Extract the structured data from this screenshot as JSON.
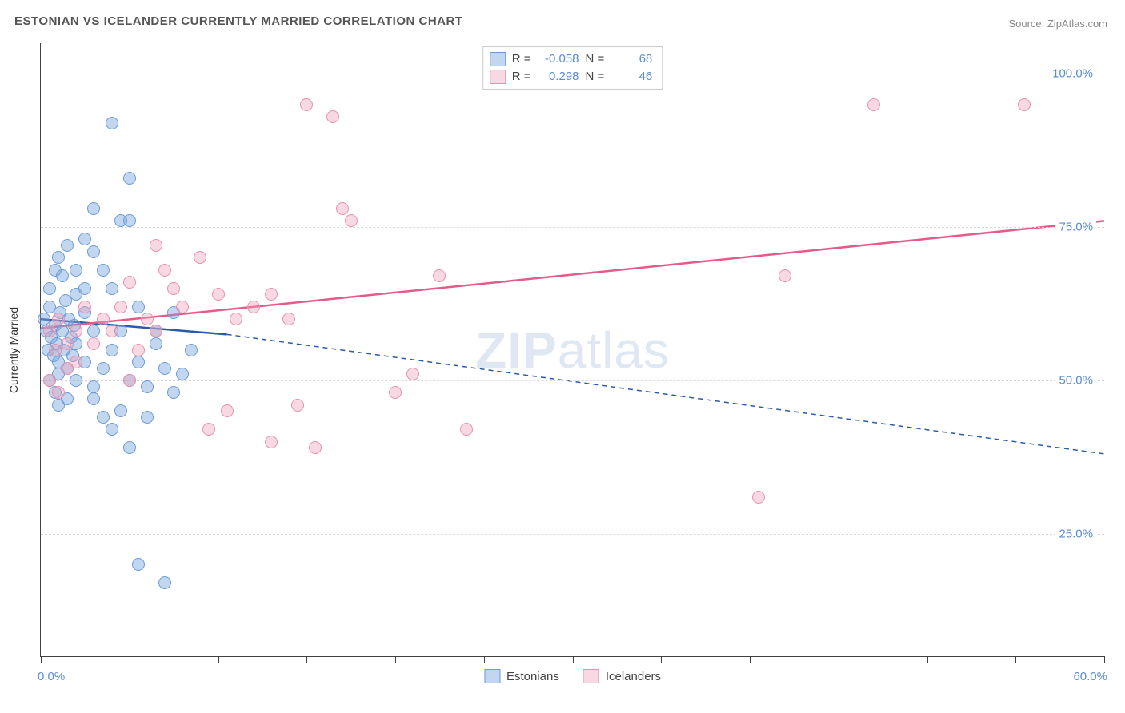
{
  "title": "ESTONIAN VS ICELANDER CURRENTLY MARRIED CORRELATION CHART",
  "source": "Source: ZipAtlas.com",
  "watermark_bold": "ZIP",
  "watermark_rest": "atlas",
  "yaxis_title": "Currently Married",
  "chart": {
    "type": "scatter",
    "xlim": [
      0,
      60
    ],
    "ylim": [
      5,
      105
    ],
    "xtick_positions": [
      0,
      5,
      10,
      15,
      20,
      25,
      30,
      35,
      40,
      45,
      50,
      55,
      60
    ],
    "xlabel_start": "0.0%",
    "xlabel_end": "60.0%",
    "ytick_positions": [
      25,
      50,
      75,
      100
    ],
    "ytick_labels": [
      "25.0%",
      "50.0%",
      "75.0%",
      "100.0%"
    ],
    "grid_color": "#d6d6d6",
    "background_color": "#ffffff",
    "point_radius": 8,
    "series": [
      {
        "name": "Estonians",
        "fill": "rgba(120,165,220,0.45)",
        "stroke": "#6a9bd8",
        "line_color": "#2a5aa8",
        "r_label": "R =",
        "r_value": "-0.058",
        "n_label": "N =",
        "n_value": "68",
        "trend": {
          "x1": 0,
          "y1": 60,
          "x2": 10.5,
          "y2": 57.5,
          "dash_x2": 60,
          "dash_y2": 38
        },
        "points": [
          [
            0.2,
            60
          ],
          [
            0.3,
            58
          ],
          [
            0.4,
            55
          ],
          [
            0.5,
            62
          ],
          [
            0.6,
            57
          ],
          [
            0.7,
            54
          ],
          [
            0.8,
            59
          ],
          [
            0.9,
            56
          ],
          [
            1.0,
            53
          ],
          [
            1.1,
            61
          ],
          [
            1.2,
            58
          ],
          [
            1.3,
            55
          ],
          [
            1.4,
            63
          ],
          [
            1.5,
            52
          ],
          [
            1.6,
            60
          ],
          [
            1.7,
            57
          ],
          [
            1.8,
            54
          ],
          [
            1.9,
            59
          ],
          [
            2.0,
            56
          ],
          [
            0.5,
            65
          ],
          [
            0.8,
            68
          ],
          [
            1.0,
            70
          ],
          [
            1.2,
            67
          ],
          [
            1.5,
            72
          ],
          [
            2.0,
            64
          ],
          [
            2.5,
            61
          ],
          [
            3.0,
            58
          ],
          [
            0.5,
            50
          ],
          [
            0.8,
            48
          ],
          [
            1.0,
            51
          ],
          [
            1.5,
            47
          ],
          [
            2.0,
            50
          ],
          [
            2.5,
            53
          ],
          [
            3.0,
            49
          ],
          [
            3.5,
            52
          ],
          [
            4.0,
            55
          ],
          [
            4.5,
            58
          ],
          [
            5.0,
            50
          ],
          [
            5.5,
            53
          ],
          [
            6.0,
            49
          ],
          [
            6.5,
            56
          ],
          [
            7.0,
            52
          ],
          [
            7.5,
            48
          ],
          [
            8.0,
            51
          ],
          [
            4.0,
            92
          ],
          [
            5.0,
            83
          ],
          [
            3.0,
            78
          ],
          [
            5.0,
            76
          ],
          [
            4.5,
            76
          ],
          [
            2.5,
            73
          ],
          [
            3.0,
            71
          ],
          [
            3.5,
            68
          ],
          [
            4.0,
            65
          ],
          [
            5.5,
            62
          ],
          [
            3.5,
            44
          ],
          [
            4.0,
            42
          ],
          [
            5.0,
            39
          ],
          [
            5.5,
            20
          ],
          [
            7.0,
            17
          ],
          [
            3.0,
            47
          ],
          [
            4.5,
            45
          ],
          [
            6.0,
            44
          ],
          [
            6.5,
            58
          ],
          [
            7.5,
            61
          ],
          [
            8.5,
            55
          ],
          [
            2.0,
            68
          ],
          [
            2.5,
            65
          ],
          [
            1.0,
            46
          ]
        ]
      },
      {
        "name": "Icelanders",
        "fill": "rgba(238,160,185,0.40)",
        "stroke": "#e890b0",
        "line_color": "#e65a88",
        "r_label": "R =",
        "r_value": "0.298",
        "n_label": "N =",
        "n_value": "46",
        "trend": {
          "x1": 0,
          "y1": 58.5,
          "x2": 60,
          "y2": 76,
          "dash_x2": null,
          "dash_y2": null
        },
        "points": [
          [
            0.5,
            58
          ],
          [
            0.8,
            55
          ],
          [
            1.0,
            60
          ],
          [
            1.5,
            56
          ],
          [
            2.0,
            53
          ],
          [
            0.5,
            50
          ],
          [
            1.0,
            48
          ],
          [
            1.5,
            52
          ],
          [
            2.0,
            58
          ],
          [
            2.5,
            62
          ],
          [
            3.0,
            56
          ],
          [
            3.5,
            60
          ],
          [
            4.0,
            58
          ],
          [
            4.5,
            62
          ],
          [
            5.0,
            66
          ],
          [
            5.5,
            55
          ],
          [
            6.0,
            60
          ],
          [
            6.5,
            58
          ],
          [
            7.0,
            68
          ],
          [
            7.5,
            65
          ],
          [
            8.0,
            62
          ],
          [
            9.0,
            70
          ],
          [
            10.0,
            64
          ],
          [
            11.0,
            60
          ],
          [
            12.0,
            62
          ],
          [
            13.0,
            64
          ],
          [
            14.0,
            60
          ],
          [
            15.0,
            95
          ],
          [
            16.5,
            93
          ],
          [
            17.0,
            78
          ],
          [
            17.5,
            76
          ],
          [
            20.0,
            48
          ],
          [
            21.0,
            51
          ],
          [
            22.5,
            67
          ],
          [
            24.0,
            42
          ],
          [
            13.0,
            40
          ],
          [
            15.5,
            39
          ],
          [
            9.5,
            42
          ],
          [
            10.5,
            45
          ],
          [
            14.5,
            46
          ],
          [
            40.5,
            31
          ],
          [
            42.0,
            67
          ],
          [
            47.0,
            95
          ],
          [
            55.5,
            95
          ],
          [
            6.5,
            72
          ],
          [
            5.0,
            50
          ]
        ]
      }
    ]
  },
  "legend_bottom": {
    "series1": "Estonians",
    "series2": "Icelanders"
  }
}
